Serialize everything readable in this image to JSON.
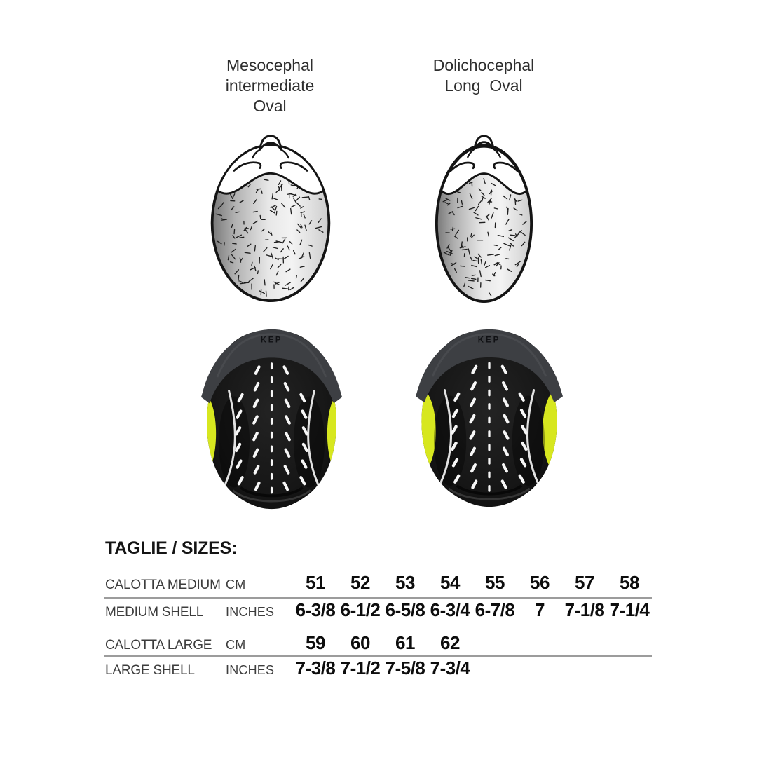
{
  "page": {
    "background": "#ffffff"
  },
  "columns": [
    {
      "id": "intermediate-oval",
      "title_lines": [
        "Mesocephal",
        "intermediate",
        "Oval"
      ],
      "head_shape": "intermediate oval head (top view)",
      "liner_variant": "intermediate-oval"
    },
    {
      "id": "long-oval",
      "title_lines": [
        "Dolichocephal",
        "Long  Oval"
      ],
      "head_shape": "long oval head (top view)",
      "liner_variant": "long-oval"
    }
  ],
  "helmet": {
    "brand": "KEP",
    "accent_yellow": "#d7e71f",
    "shell_black": "#151515",
    "rim_gray": "#3d3f43"
  },
  "size_table": {
    "title": "TAGLIE / SIZES:",
    "rows": [
      {
        "label": "CALOTTA MEDIUM",
        "unit": "CM",
        "values": [
          "51",
          "52",
          "53",
          "54",
          "55",
          "56",
          "57",
          "58"
        ],
        "rule_below": true
      },
      {
        "label": "MEDIUM SHELL",
        "unit": "INCHES",
        "values": [
          "6-3/8",
          "6-1/2",
          "6-5/8",
          "6-3/4",
          "6-7/8",
          "7",
          "7-1/8",
          "7-1/4"
        ],
        "rule_below": false
      },
      {
        "label": "CALOTTA LARGE",
        "unit": "CM",
        "values": [
          "59",
          "60",
          "61",
          "62"
        ],
        "rule_below": true
      },
      {
        "label": "LARGE SHELL",
        "unit": "INCHES",
        "values": [
          "7-3/8",
          "7-1/2",
          "7-5/8",
          "7-3/4"
        ],
        "rule_below": false
      }
    ]
  }
}
